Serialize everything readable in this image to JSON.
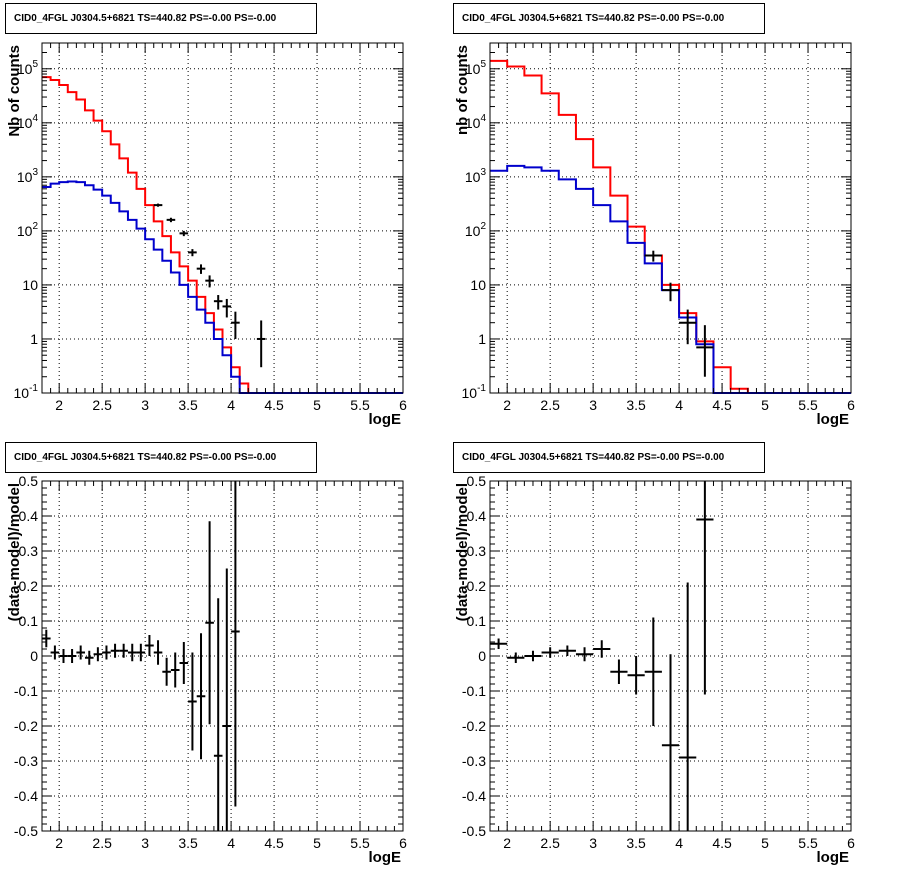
{
  "panels": [
    {
      "title": "CID0_4FGL J0304.5+6821 TS=440.82 PS=-0.00 PS=-0.00",
      "ylabel": "Nb of counts",
      "xlabel": "logE"
    },
    {
      "title": "CID0_4FGL J0304.5+6821 TS=440.82 PS=-0.00 PS=-0.00",
      "ylabel": "nb of counts",
      "xlabel": "logE"
    },
    {
      "title": "CID0_4FGL J0304.5+6821 TS=440.82 PS=-0.00 PS=-0.00",
      "ylabel": "(data-model)/model",
      "xlabel": "logE"
    },
    {
      "title": "CID0_4FGL J0304.5+6821 TS=440.82 PS=-0.00 PS=-0.00",
      "ylabel": "(data-model)/model",
      "xlabel": "logE"
    }
  ],
  "colors": {
    "total_model": "#ff0000",
    "source_model": "#0000cc",
    "data": "#000000"
  },
  "chart_data": [
    {
      "type": "line",
      "title": "CID0_4FGL J0304.5+6821 TS=440.82 PS=-0.00 PS=-0.00",
      "xlabel": "logE",
      "ylabel": "Nb of counts",
      "xlim": [
        1.8,
        6.0
      ],
      "ylim": [
        0.1,
        300000
      ],
      "yscale": "log",
      "grid": true,
      "x_ticks": [
        "2",
        "2.5",
        "3",
        "3.5",
        "4",
        "4.5",
        "5",
        "5.5",
        "6"
      ],
      "y_ticks": [
        "10^-1",
        "1",
        "10",
        "10^2",
        "10^3",
        "10^4",
        "10^5"
      ],
      "bin_edges": [
        1.8,
        1.9,
        2.0,
        2.1,
        2.2,
        2.3,
        2.4,
        2.5,
        2.6,
        2.7,
        2.8,
        2.9,
        3.0,
        3.1,
        3.2,
        3.3,
        3.4,
        3.5,
        3.6,
        3.7,
        3.8,
        3.9,
        4.0,
        4.1,
        4.2,
        4.3,
        4.4,
        4.5,
        4.6,
        4.7,
        4.8,
        4.9,
        5.0,
        5.1,
        5.2,
        5.3,
        5.4,
        5.5,
        5.6,
        5.7,
        5.8,
        5.9,
        6.0
      ],
      "series": [
        {
          "style": "step",
          "color": "#ff0000",
          "values": [
            70000,
            62000,
            50000,
            37000,
            27000,
            17000,
            11000,
            7000,
            4000,
            2200,
            1200,
            600,
            300,
            150,
            80,
            40,
            22,
            12,
            6,
            3,
            1.5,
            0.7,
            0.3,
            0.15,
            0.1,
            0.1,
            0.1,
            0.1,
            0.1,
            0.1,
            0.1,
            0.1,
            0.1,
            0.1,
            0.1,
            0.1,
            0.1,
            0.1,
            0.1,
            0.1,
            0.1,
            0.1
          ]
        },
        {
          "style": "step",
          "color": "#0000cc",
          "values": [
            650,
            750,
            800,
            820,
            800,
            700,
            580,
            450,
            330,
            230,
            160,
            110,
            70,
            45,
            28,
            17,
            10,
            6,
            3.5,
            2,
            1,
            0.5,
            0.2,
            0.1,
            0.1,
            0.1,
            0.1,
            0.1,
            0.1,
            0.1,
            0.1,
            0.1,
            0.1,
            0.1,
            0.1,
            0.1,
            0.1,
            0.1,
            0.1,
            0.1,
            0.1,
            0.1
          ]
        },
        {
          "style": "errorbar",
          "color": "#000000",
          "x": [
            3.15,
            3.3,
            3.45,
            3.55,
            3.65,
            3.75,
            3.85,
            3.95,
            4.05,
            4.35
          ],
          "y": [
            300,
            160,
            90,
            40,
            20,
            12,
            5,
            4,
            2,
            1
          ],
          "yerr_low": [
            20,
            15,
            10,
            6,
            4,
            3,
            1.5,
            1.5,
            1,
            0.7
          ],
          "yerr_high": [
            20,
            15,
            10,
            6,
            4,
            3,
            1.5,
            1.5,
            1.2,
            1.2
          ],
          "xerr": 0.05
        }
      ]
    },
    {
      "type": "line",
      "title": "CID0_4FGL J0304.5+6821 TS=440.82 PS=-0.00 PS=-0.00",
      "xlabel": "logE",
      "ylabel": "nb of counts",
      "xlim": [
        1.8,
        6.0
      ],
      "ylim": [
        0.1,
        300000
      ],
      "yscale": "log",
      "grid": true,
      "x_ticks": [
        "2",
        "2.5",
        "3",
        "3.5",
        "4",
        "4.5",
        "5",
        "5.5",
        "6"
      ],
      "y_ticks": [
        "10^-1",
        "1",
        "10",
        "10^2",
        "10^3",
        "10^4",
        "10^5"
      ],
      "bin_edges": [
        1.8,
        2.0,
        2.2,
        2.4,
        2.6,
        2.8,
        3.0,
        3.2,
        3.4,
        3.6,
        3.8,
        4.0,
        4.2,
        4.4,
        4.6,
        4.8,
        5.0,
        5.2,
        5.4,
        5.6,
        5.8,
        6.0
      ],
      "series": [
        {
          "style": "step",
          "color": "#ff0000",
          "values": [
            140000,
            110000,
            75000,
            35000,
            14000,
            5000,
            1500,
            450,
            120,
            35,
            10,
            3,
            0.9,
            0.3,
            0.12,
            0.1,
            0.1,
            0.1,
            0.1,
            0.1,
            0.1
          ]
        },
        {
          "style": "step",
          "color": "#0000cc",
          "values": [
            1300,
            1600,
            1500,
            1300,
            900,
            600,
            300,
            150,
            60,
            25,
            8,
            2.5,
            0.8,
            0.1,
            0.1,
            0.1,
            0.1,
            0.1,
            0.1,
            0.1,
            0.1
          ]
        },
        {
          "style": "errorbar",
          "color": "#000000",
          "x": [
            3.7,
            3.9,
            4.1,
            4.3
          ],
          "y": [
            35,
            8,
            2,
            0.7
          ],
          "yerr_low": [
            8,
            3,
            1.2,
            0.5
          ],
          "yerr_high": [
            8,
            3,
            1.5,
            1.1
          ],
          "xerr": 0.1
        }
      ]
    },
    {
      "type": "scatter",
      "title": "CID0_4FGL J0304.5+6821 TS=440.82 PS=-0.00 PS=-0.00",
      "xlabel": "logE",
      "ylabel": "(data-model)/model",
      "xlim": [
        1.8,
        6.0
      ],
      "ylim": [
        -0.5,
        0.5
      ],
      "grid": true,
      "x_ticks": [
        "2",
        "2.5",
        "3",
        "3.5",
        "4",
        "4.5",
        "5",
        "5.5",
        "6"
      ],
      "y_ticks": [
        "-0.5",
        "-0.4",
        "-0.3",
        "-0.2",
        "-0.1",
        "0",
        "0.1",
        "0.2",
        "0.3",
        "0.4",
        "0.5"
      ],
      "series": [
        {
          "style": "errorbar",
          "color": "#000000",
          "xerr": 0.05,
          "x": [
            1.85,
            1.95,
            2.05,
            2.15,
            2.25,
            2.35,
            2.45,
            2.55,
            2.65,
            2.75,
            2.85,
            2.95,
            3.05,
            3.15,
            3.25,
            3.35,
            3.45,
            3.55,
            3.65,
            3.75,
            3.85,
            3.95,
            4.05
          ],
          "y": [
            0.05,
            0.01,
            0.0,
            0.0,
            0.01,
            -0.005,
            0.005,
            0.01,
            0.015,
            0.015,
            0.01,
            0.01,
            0.03,
            0.01,
            -0.045,
            -0.04,
            -0.02,
            -0.13,
            -0.115,
            0.095,
            -0.285,
            -0.2,
            0.07
          ],
          "yerr": [
            0.025,
            0.02,
            0.02,
            0.02,
            0.02,
            0.02,
            0.02,
            0.02,
            0.02,
            0.02,
            0.025,
            0.025,
            0.03,
            0.035,
            0.04,
            0.05,
            0.06,
            0.14,
            0.18,
            0.29,
            0.45,
            0.45,
            0.5
          ]
        }
      ]
    },
    {
      "type": "scatter",
      "title": "CID0_4FGL J0304.5+6821 TS=440.82 PS=-0.00 PS=-0.00",
      "xlabel": "logE",
      "ylabel": "(data-model)/model",
      "xlim": [
        1.8,
        6.0
      ],
      "ylim": [
        -0.5,
        0.5
      ],
      "grid": true,
      "x_ticks": [
        "2",
        "2.5",
        "3",
        "3.5",
        "4",
        "4.5",
        "5",
        "5.5",
        "6"
      ],
      "y_ticks": [
        "-0.5",
        "-0.4",
        "-0.3",
        "-0.2",
        "-0.1",
        "0",
        "0.1",
        "0.2",
        "0.3",
        "0.4",
        "0.5"
      ],
      "series": [
        {
          "style": "errorbar",
          "color": "#000000",
          "xerr": 0.1,
          "x": [
            1.9,
            2.1,
            2.3,
            2.5,
            2.7,
            2.9,
            3.1,
            3.3,
            3.5,
            3.7,
            3.9,
            4.1,
            4.3
          ],
          "y": [
            0.035,
            -0.005,
            0.0,
            0.01,
            0.015,
            0.005,
            0.02,
            -0.045,
            -0.055,
            -0.045,
            -0.255,
            -0.29,
            0.39
          ],
          "yerr": [
            0.015,
            0.015,
            0.015,
            0.015,
            0.015,
            0.02,
            0.025,
            0.035,
            0.055,
            0.155,
            0.26,
            0.5,
            0.5
          ]
        }
      ]
    }
  ]
}
